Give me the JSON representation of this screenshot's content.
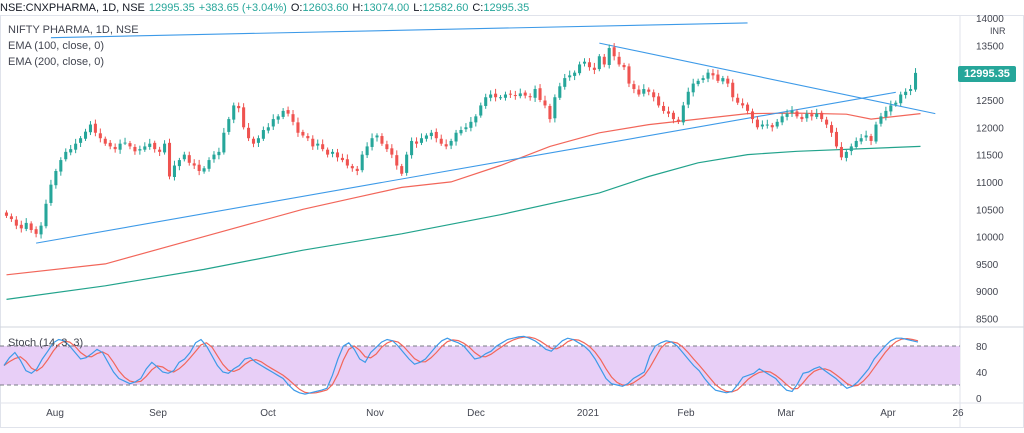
{
  "header": {
    "symbol": "NSE:CNXPHARMA, 1D, NSE",
    "last": "12995.35",
    "change": "+383.65 (+3.04%)",
    "open_label": "O:",
    "open": "12603.60",
    "high_label": "H:",
    "high": "13074.00",
    "low_label": "L:",
    "low": "12582.60",
    "close_label": "C:",
    "close": "12995.35"
  },
  "legend": {
    "title": "NIFTY PHARMA, 1D, NSE",
    "ema100": "EMA (100, close, 0)",
    "ema200": "EMA (200, close, 0)",
    "stoch": "Stoch (14, 3, 3)"
  },
  "price_tag": "12995.35",
  "currency": "INR",
  "colors": {
    "up": "#26a69a",
    "down": "#ef5350",
    "ema100": "#f2665a",
    "ema200": "#22a38c",
    "trendline": "#3d9ae8",
    "stoch_k": "#3d9ae8",
    "stoch_d": "#f2665a",
    "stoch_band": "#e8cff7"
  },
  "chart_data": [
    {
      "type": "candlestick",
      "title": "NIFTY PHARMA, 1D, NSE",
      "ylim": [
        8400,
        14000
      ],
      "yticks": [
        8500,
        9000,
        9500,
        10000,
        10500,
        11000,
        11500,
        12000,
        12500,
        13000,
        13500,
        14000
      ],
      "x_labels": [
        "Aug",
        "Sep",
        "Oct",
        "Nov",
        "Dec",
        "2021",
        "Feb",
        "Mar",
        "Apr",
        "26"
      ],
      "closes": [
        10380,
        10320,
        10200,
        10150,
        10250,
        10120,
        10050,
        10200,
        10600,
        10950,
        11200,
        11400,
        11550,
        11600,
        11700,
        11800,
        11920,
        12050,
        11900,
        11800,
        11700,
        11650,
        11600,
        11700,
        11720,
        11650,
        11560,
        11600,
        11650,
        11700,
        11600,
        11550,
        11700,
        11100,
        11300,
        11400,
        11500,
        11350,
        11300,
        11200,
        11250,
        11400,
        11500,
        11550,
        11900,
        12150,
        12400,
        12350,
        12000,
        11800,
        11700,
        11800,
        11950,
        12000,
        12150,
        12200,
        12300,
        12250,
        12100,
        11900,
        11850,
        11800,
        11650,
        11700,
        11600,
        11500,
        11550,
        11450,
        11400,
        11300,
        11250,
        11200,
        11500,
        11650,
        11800,
        11850,
        11700,
        11600,
        11500,
        11300,
        11150,
        11500,
        11750,
        11700,
        11800,
        11850,
        11900,
        11800,
        11700,
        11650,
        11750,
        11900,
        11950,
        12000,
        12100,
        12200,
        12400,
        12550,
        12600,
        12550,
        12550,
        12600,
        12600,
        12580,
        12620,
        12580,
        12550,
        12700,
        12500,
        12400,
        12150,
        12550,
        12750,
        12900,
        12950,
        13000,
        13150,
        13200,
        13100,
        13050,
        13300,
        13150,
        13450,
        13300,
        13150,
        13100,
        12800,
        12700,
        12600,
        12700,
        12650,
        12550,
        12400,
        12300,
        12250,
        12150,
        12100,
        12400,
        12650,
        12800,
        12850,
        12900,
        13000,
        12950,
        12850,
        12900,
        12800,
        12550,
        12450,
        12400,
        12300,
        12150,
        12000,
        12050,
        12050,
        12000,
        12100,
        12200,
        12250,
        12300,
        12200,
        12150,
        12250,
        12200,
        12250,
        12150,
        12050,
        11900,
        11650,
        11450,
        11550,
        11650,
        11750,
        11800,
        11850,
        11750,
        12050,
        12200,
        12300,
        12400,
        12450,
        12600,
        12650,
        12700,
        12995.35
      ],
      "ema100_points": [
        [
          0,
          9300
        ],
        [
          20,
          9500
        ],
        [
          40,
          10000
        ],
        [
          60,
          10500
        ],
        [
          70,
          10700
        ],
        [
          80,
          10900
        ],
        [
          90,
          11000
        ],
        [
          100,
          11300
        ],
        [
          110,
          11650
        ],
        [
          120,
          11900
        ],
        [
          130,
          12050
        ],
        [
          140,
          12150
        ],
        [
          150,
          12250
        ],
        [
          160,
          12260
        ],
        [
          170,
          12240
        ],
        [
          175,
          12150
        ],
        [
          185,
          12250
        ]
      ],
      "ema200_points": [
        [
          0,
          8850
        ],
        [
          20,
          9100
        ],
        [
          40,
          9400
        ],
        [
          60,
          9750
        ],
        [
          80,
          10050
        ],
        [
          100,
          10400
        ],
        [
          120,
          10800
        ],
        [
          130,
          11100
        ],
        [
          140,
          11350
        ],
        [
          150,
          11500
        ],
        [
          160,
          11560
        ],
        [
          185,
          11650
        ]
      ],
      "trendlines": [
        {
          "p1": [
            9,
            13640
          ],
          "p2": [
            150,
            13910
          ]
        },
        {
          "p1": [
            6,
            9880
          ],
          "p2": [
            180,
            12640
          ]
        },
        {
          "p1": [
            120,
            13540
          ],
          "p2": [
            188,
            12250
          ]
        }
      ]
    },
    {
      "type": "line",
      "title": "Stoch (14, 3, 3)",
      "ylim": [
        0,
        100
      ],
      "yticks": [
        0,
        40,
        80
      ],
      "band": [
        20,
        80
      ],
      "k": [
        50,
        62,
        70,
        58,
        42,
        38,
        45,
        60,
        72,
        85,
        90,
        88,
        80,
        70,
        60,
        62,
        68,
        75,
        70,
        55,
        40,
        30,
        26,
        22,
        25,
        30,
        45,
        55,
        48,
        40,
        38,
        42,
        55,
        60,
        70,
        85,
        90,
        80,
        65,
        50,
        40,
        38,
        45,
        50,
        60,
        62,
        55,
        50,
        45,
        40,
        35,
        30,
        20,
        12,
        8,
        6,
        8,
        10,
        12,
        15,
        35,
        60,
        80,
        85,
        75,
        60,
        55,
        70,
        78,
        86,
        90,
        88,
        80,
        70,
        60,
        52,
        55,
        60,
        70,
        80,
        88,
        92,
        88,
        85,
        80,
        70,
        60,
        62,
        68,
        72,
        80,
        85,
        90,
        92,
        94,
        95,
        92,
        88,
        82,
        75,
        72,
        80,
        88,
        92,
        90,
        85,
        80,
        72,
        60,
        45,
        30,
        22,
        20,
        18,
        22,
        30,
        35,
        40,
        65,
        80,
        85,
        88,
        86,
        80,
        70,
        60,
        50,
        42,
        30,
        20,
        12,
        10,
        8,
        10,
        20,
        32,
        35,
        38,
        45,
        40,
        35,
        30,
        20,
        12,
        10,
        22,
        38,
        40,
        45,
        48,
        42,
        36,
        30,
        22,
        15,
        18,
        25,
        35,
        45,
        60,
        70,
        80,
        88,
        92,
        92,
        90,
        88,
        86
      ]
    }
  ]
}
